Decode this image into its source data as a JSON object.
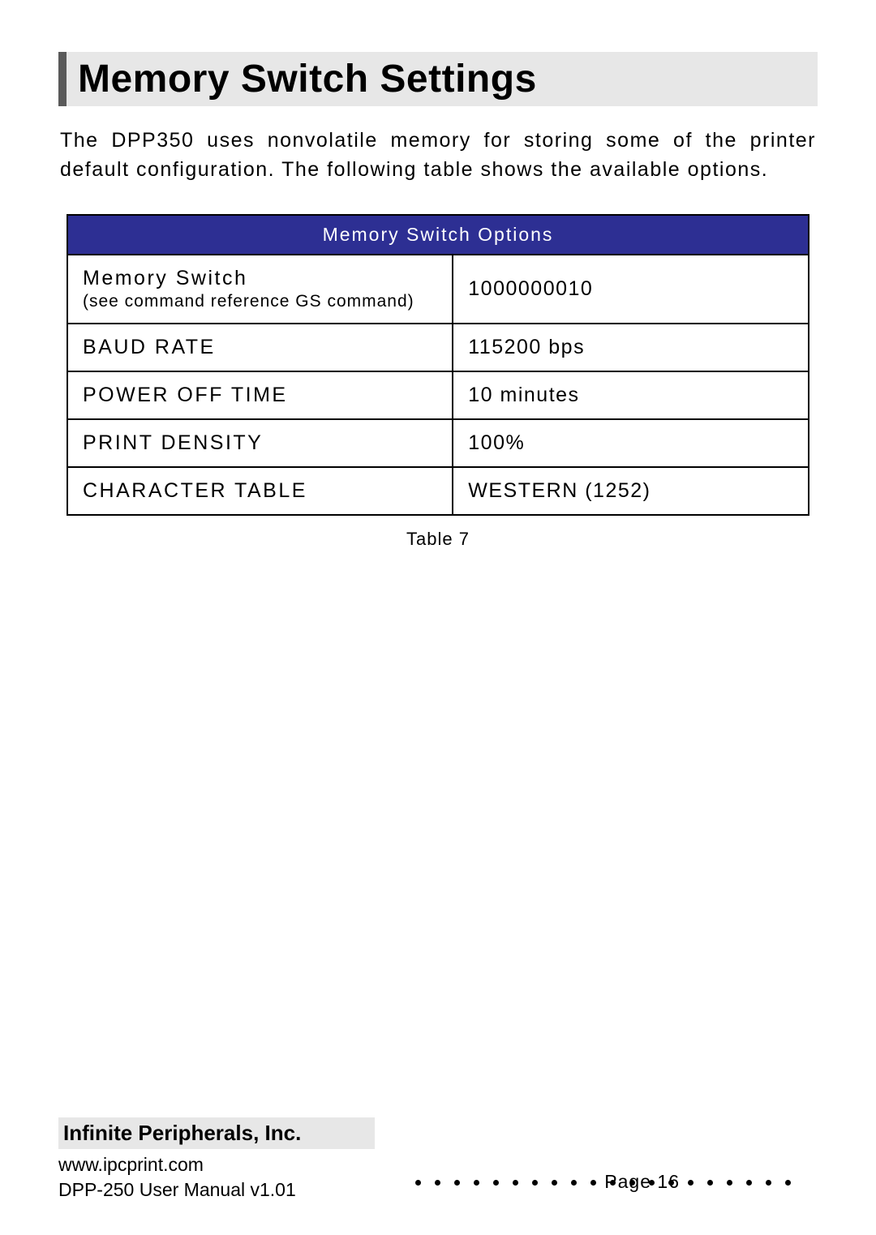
{
  "title": "Memory Switch Settings",
  "intro": "The DPP350 uses nonvolatile memory for storing some of the printer default configuration. The following table shows the available options.",
  "table": {
    "header": "Memory Switch Options",
    "header_bg": "#2d2f93",
    "header_fg": "#ffffff",
    "border_color": "#000000",
    "rows": [
      {
        "label": "Memory Switch",
        "sublabel": "(see command reference GS command)",
        "value": "1000000010"
      },
      {
        "label": "BAUD RATE",
        "sublabel": "",
        "value": "115200 bps"
      },
      {
        "label": "POWER OFF TIME",
        "sublabel": "",
        "value": "10 minutes"
      },
      {
        "label": "PRINT DENSITY",
        "sublabel": "",
        "value": "100%"
      },
      {
        "label": "CHARACTER TABLE",
        "sublabel": "",
        "value": "WESTERN (1252)"
      }
    ],
    "caption": "Table 7"
  },
  "footer": {
    "company": "Infinite Peripherals, Inc.",
    "url": "www.ipcprint.com",
    "manual": "DPP-250 User Manual v1.01",
    "page": "Page 16",
    "dot_count": 20
  },
  "colors": {
    "page_bg": "#ffffff",
    "bar_bg": "#e7e7e7",
    "bar_border": "#5a5a5a",
    "text": "#000000"
  }
}
